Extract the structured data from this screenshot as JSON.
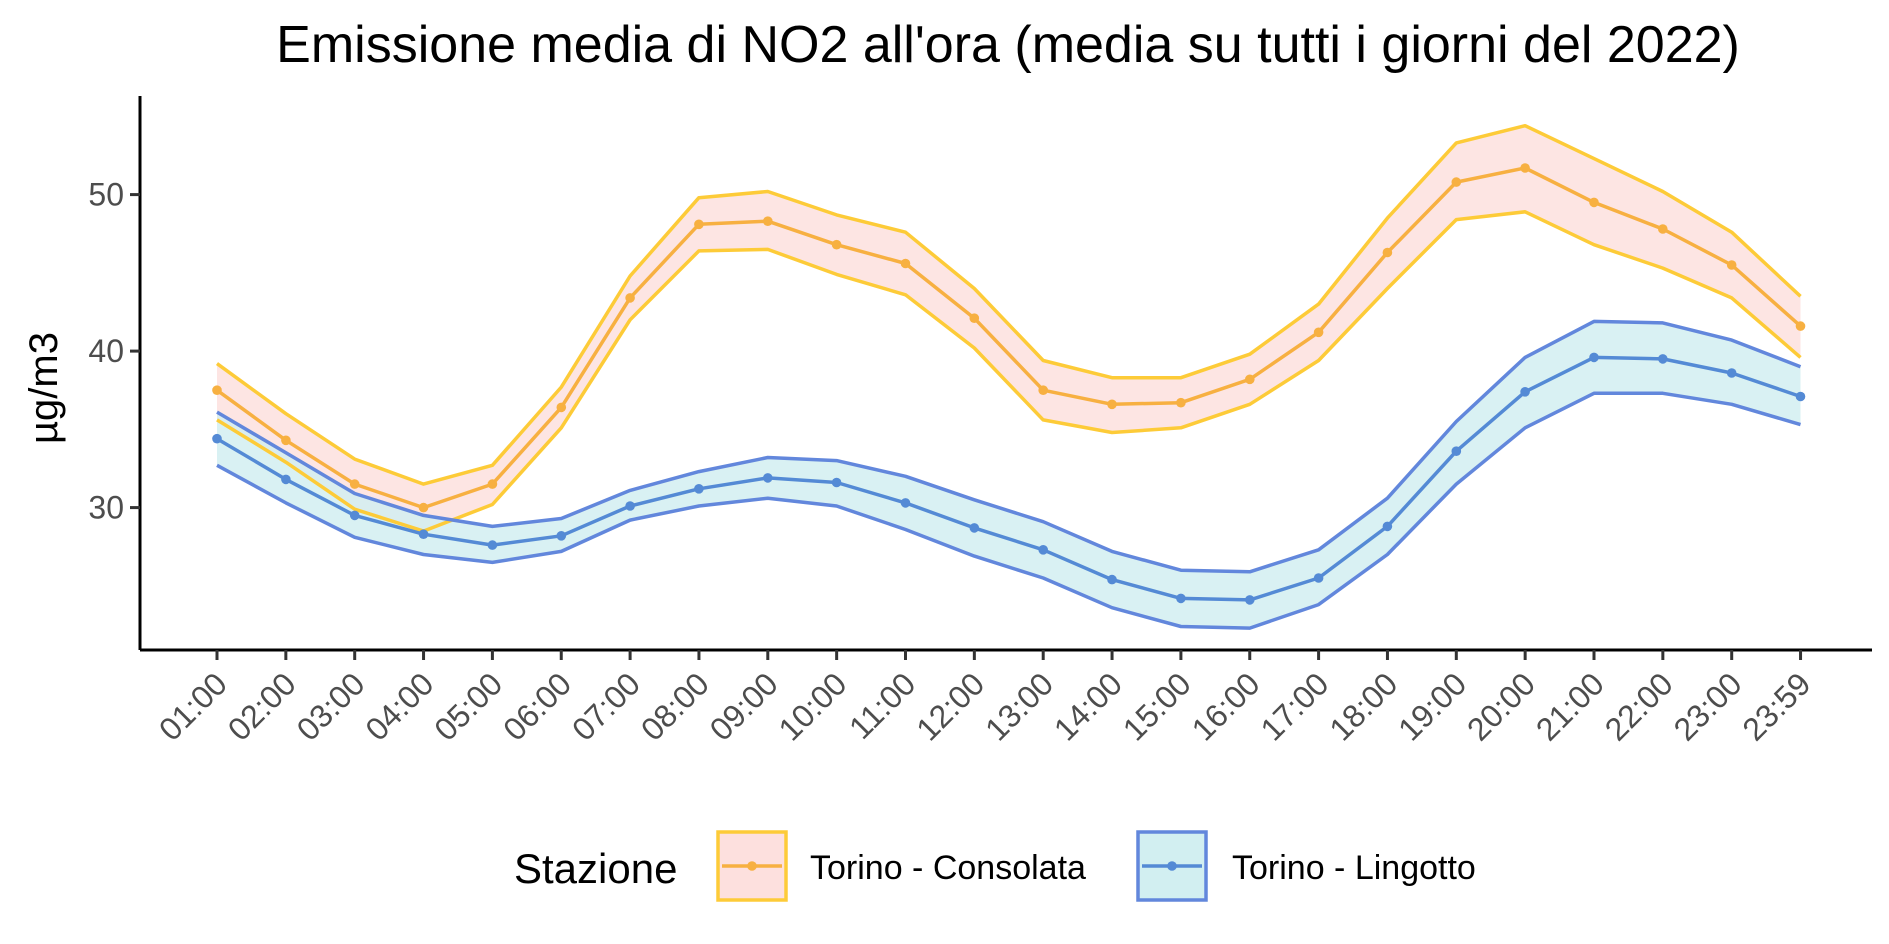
{
  "chart_data": {
    "type": "line",
    "title": "Emissione media di NO2 all'ora (media su tutti i giorni del 2022)",
    "xlabel": "",
    "ylabel": "µg/m3",
    "categories": [
      "01:00",
      "02:00",
      "03:00",
      "04:00",
      "05:00",
      "06:00",
      "07:00",
      "08:00",
      "09:00",
      "10:00",
      "11:00",
      "12:00",
      "13:00",
      "14:00",
      "15:00",
      "16:00",
      "17:00",
      "18:00",
      "19:00",
      "20:00",
      "21:00",
      "22:00",
      "23:00",
      "23:59"
    ],
    "yticks": [
      30,
      40,
      50
    ],
    "ylim": [
      20.9,
      56.3
    ],
    "grid": false,
    "legend": {
      "title": "Stazione",
      "position": "bottom"
    },
    "series": [
      {
        "name": "Torino - Consolata",
        "line_color": "#f7b041",
        "ribbon_fill": "#fde0de",
        "ribbon_border": "#fdcb38",
        "values": [
          37.5,
          34.3,
          31.5,
          30.0,
          31.5,
          36.4,
          43.4,
          48.1,
          48.3,
          46.8,
          45.6,
          42.1,
          37.5,
          36.6,
          36.7,
          38.2,
          41.2,
          46.3,
          50.8,
          51.7,
          49.5,
          47.8,
          45.5,
          41.6
        ],
        "upper": [
          39.2,
          36.0,
          33.1,
          31.5,
          32.7,
          37.7,
          44.8,
          49.8,
          50.2,
          48.7,
          47.6,
          44.0,
          39.4,
          38.3,
          38.3,
          39.8,
          43.0,
          48.5,
          53.3,
          54.4,
          52.3,
          50.2,
          47.6,
          43.5
        ],
        "lower": [
          35.6,
          32.9,
          29.9,
          28.5,
          30.2,
          35.1,
          42.0,
          46.4,
          46.5,
          44.9,
          43.6,
          40.2,
          35.6,
          34.8,
          35.1,
          36.6,
          39.4,
          44.0,
          48.4,
          48.9,
          46.8,
          45.3,
          43.4,
          39.6
        ]
      },
      {
        "name": "Torino - Lingotto",
        "line_color": "#548ad5",
        "ribbon_fill": "#d2eff1",
        "ribbon_border": "#6287dc",
        "values": [
          34.4,
          31.8,
          29.5,
          28.3,
          27.6,
          28.2,
          30.1,
          31.2,
          31.9,
          31.6,
          30.3,
          28.7,
          27.3,
          25.4,
          24.2,
          24.1,
          25.5,
          28.8,
          33.6,
          37.4,
          39.6,
          39.5,
          38.6,
          37.1
        ],
        "upper": [
          36.1,
          33.5,
          30.9,
          29.5,
          28.8,
          29.3,
          31.1,
          32.3,
          33.2,
          33.0,
          32.0,
          30.5,
          29.1,
          27.2,
          26.0,
          25.9,
          27.3,
          30.6,
          35.5,
          39.6,
          41.9,
          41.8,
          40.7,
          39.0
        ],
        "lower": [
          32.7,
          30.3,
          28.1,
          27.0,
          26.5,
          27.2,
          29.2,
          30.1,
          30.6,
          30.1,
          28.6,
          26.9,
          25.5,
          23.6,
          22.4,
          22.3,
          23.8,
          27.0,
          31.5,
          35.1,
          37.3,
          37.3,
          36.6,
          35.3
        ]
      }
    ]
  }
}
